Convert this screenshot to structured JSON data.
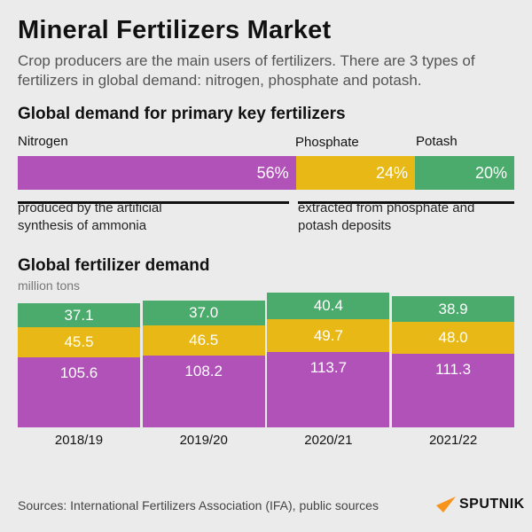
{
  "title": "Mineral Fertilizers Market",
  "subtitle": "Crop producers are the main users of fertilizers. There are 3 types of fertilizers in global demand: nitrogen, phosphate and potash.",
  "colors": {
    "nitrogen": "#b152b9",
    "phosphate": "#e8b916",
    "potash": "#4bab6c",
    "background": "#ebebeb",
    "logo": "#f7941d"
  },
  "share": {
    "heading": "Global demand for primary key fertilizers",
    "items": [
      {
        "name": "Nitrogen",
        "value": 56,
        "label": "56%"
      },
      {
        "name": "Phosphate",
        "value": 24,
        "label": "24%"
      },
      {
        "name": "Potash",
        "value": 20,
        "label": "20%"
      }
    ],
    "note_left": "produced by the artificial synthesis of ammonia",
    "note_right": "extracted from phosphate and potash deposits"
  },
  "chart_data": {
    "type": "bar",
    "stacked": true,
    "title": "Global fertilizer demand",
    "ylabel": "million tons",
    "categories": [
      "2018/19",
      "2019/20",
      "2020/21",
      "2021/22"
    ],
    "series": [
      {
        "name": "Nitrogen",
        "values": [
          105.6,
          108.2,
          113.7,
          111.3
        ],
        "labels": [
          "105.6",
          "108.2",
          "113.7",
          "111.3"
        ]
      },
      {
        "name": "Phosphate",
        "values": [
          45.5,
          46.5,
          49.7,
          48.0
        ],
        "labels": [
          "45.5",
          "46.5",
          "49.7",
          "48.0"
        ]
      },
      {
        "name": "Potash",
        "values": [
          37.1,
          37.0,
          40.4,
          38.9
        ],
        "labels": [
          "37.1",
          "37.0",
          "40.4",
          "38.9"
        ]
      }
    ]
  },
  "source": "Sources: International Fertilizers Association (IFA), public sources",
  "logo": "SPUTNIK"
}
